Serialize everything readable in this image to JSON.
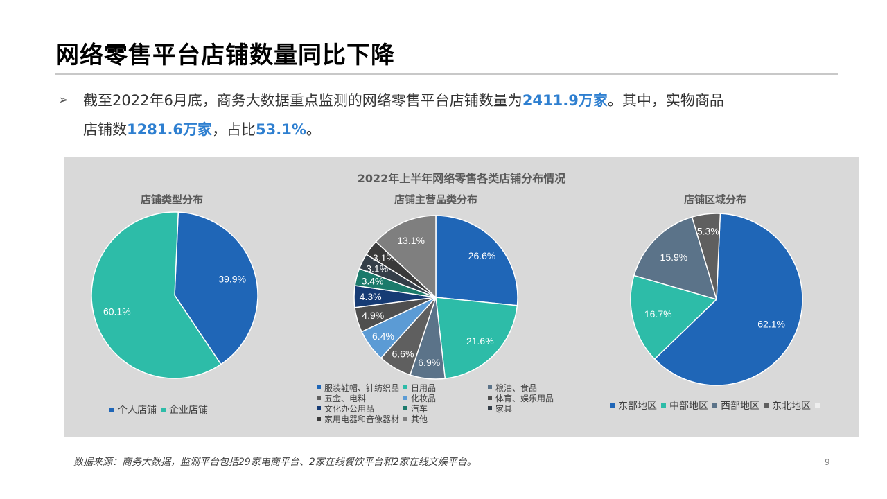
{
  "title": "网络零售平台店铺数量同比下降",
  "summary": {
    "bullet": "➢",
    "line1_a": "截至2022年6月底，商务大数据重点监测的网络零售平台店铺数量为",
    "line1_b": "2411.9万家",
    "line1_c": "。其中，实物商品",
    "line2_a": "店铺数",
    "line2_b": "1281.6万家",
    "line2_c": "，占比",
    "line2_d": "53.1%",
    "line2_e": "。"
  },
  "panel_title": "2022年上半年网络零售各类店铺分布情况",
  "chart_data": [
    {
      "type": "pie",
      "title": "店铺类型分布",
      "categories": [
        "个人店铺",
        "企业店铺"
      ],
      "values": [
        39.9,
        60.1
      ],
      "labels": [
        "39.9%",
        "60.1%"
      ],
      "colors": [
        "#1f66b7",
        "#2dbca8"
      ],
      "legend": "bottom"
    },
    {
      "type": "pie",
      "title": "店铺主营品类分布",
      "categories": [
        "服装鞋帽、针纺织品",
        "日用品",
        "粮油、食品",
        "五金、电料",
        "化妆品",
        "体育、娱乐用品",
        "文化办公用品",
        "汽车",
        "家具",
        "家用电器和音像器材",
        "其他"
      ],
      "values": [
        26.6,
        21.6,
        6.9,
        6.6,
        6.4,
        4.9,
        4.3,
        3.4,
        3.1,
        3.1,
        13.1
      ],
      "labels": [
        "26.6%",
        "21.6%",
        "6.9%",
        "6.6%",
        "6.4%",
        "4.9%",
        "4.3%",
        "3.4%",
        "3.1%",
        "3.1%",
        "13.1%"
      ],
      "colors": [
        "#1f66b7",
        "#2dbca8",
        "#5b7389",
        "#5f5f5f",
        "#5b9bd5",
        "#4f4f4f",
        "#163b74",
        "#1b7a6b",
        "#343e48",
        "#3a3a3a",
        "#7f7f7f"
      ],
      "legend": "bottom"
    },
    {
      "type": "pie",
      "title": "店铺区域分布",
      "categories": [
        "东部地区",
        "中部地区",
        "西部地区",
        "东北地区"
      ],
      "values": [
        62.1,
        16.7,
        15.9,
        5.3
      ],
      "labels": [
        "62.1%",
        "16.7%",
        "15.9%",
        "5.3%"
      ],
      "colors": [
        "#1f66b7",
        "#2dbca8",
        "#5b7389",
        "#5f5f5f"
      ],
      "legend": "bottom"
    }
  ],
  "footer": "数据来源：商务大数据，监测平台包括29家电商平台、2家在线餐饮平台和2家在线文娱平台。",
  "page_number": "9"
}
